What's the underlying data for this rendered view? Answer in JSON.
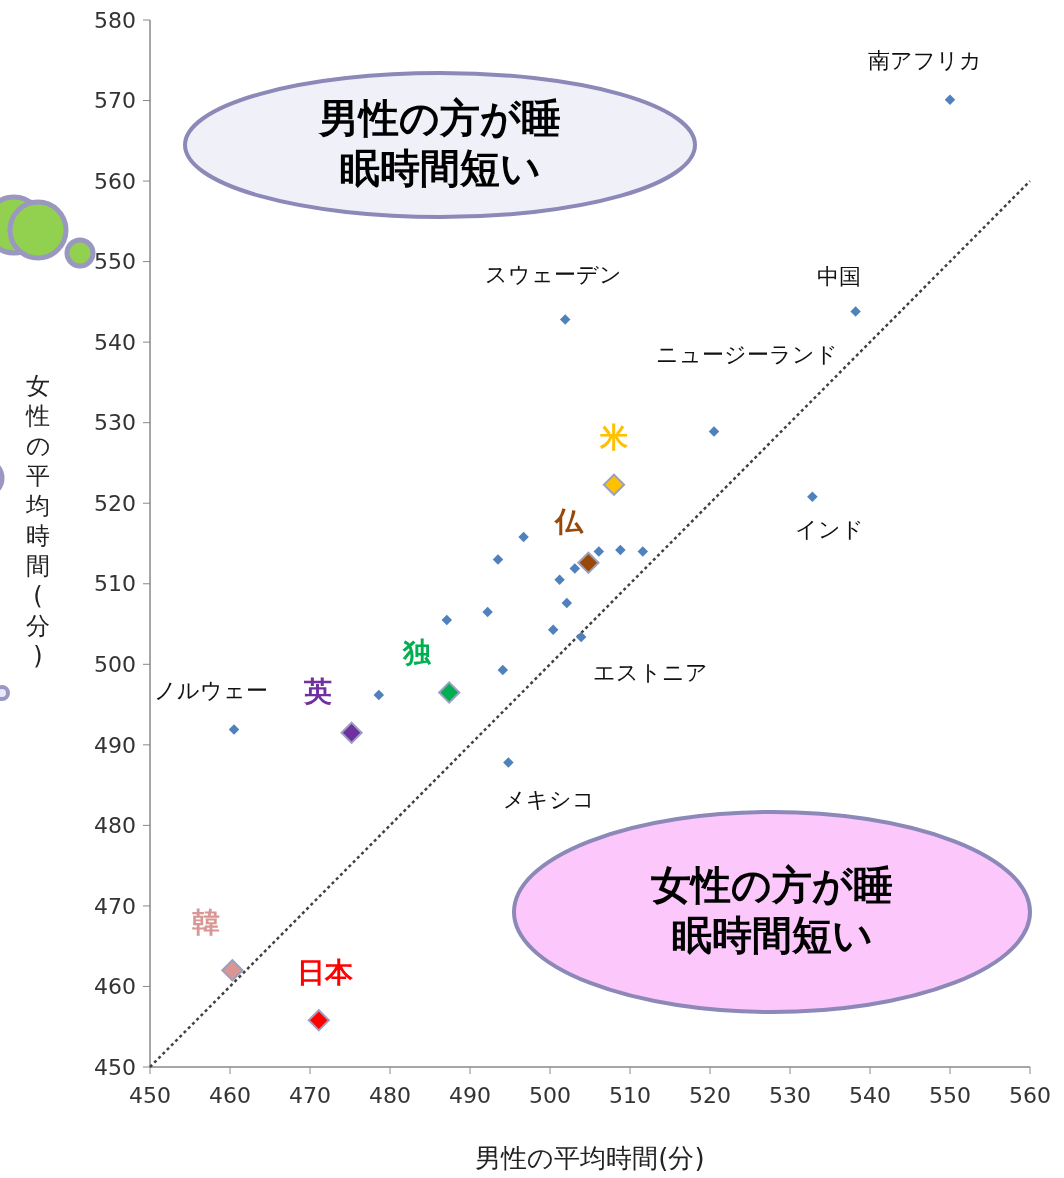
{
  "chart_data": {
    "type": "scatter",
    "xlabel": "男性の平均時間(分)",
    "ylabel": "女性の平均時間(分)",
    "xlim": [
      450,
      560
    ],
    "ylim": [
      450,
      580
    ],
    "xticks": [
      450,
      460,
      470,
      480,
      490,
      500,
      510,
      520,
      530,
      540,
      550,
      560
    ],
    "yticks": [
      450,
      460,
      470,
      480,
      490,
      500,
      510,
      520,
      530,
      540,
      550,
      560,
      570,
      580
    ],
    "grid": false,
    "marker": "diamond",
    "series": [
      {
        "type": "line",
        "color": "#404040",
        "line_style": "dotted",
        "marker": "none",
        "x": [
          450,
          560
        ],
        "values": [
          450,
          560
        ]
      },
      {
        "color": "#4f81bd",
        "x": [
          550,
          501.9,
          538.2,
          520.5,
          532.8,
          460.5,
          494.8,
          503.9,
          496.7,
          493.5,
          501.2,
          503.1,
          506.1,
          508.8,
          511.6,
          502.1,
          492.2,
          487.1,
          500.4,
          494.1,
          478.6
        ],
        "values": [
          570.1,
          542.8,
          543.8,
          528.9,
          520.8,
          491.9,
          487.8,
          503.4,
          515.8,
          513,
          510.5,
          511.9,
          514,
          514.2,
          514,
          507.6,
          506.5,
          505.5,
          504.3,
          499.3,
          496.2
        ]
      },
      {
        "name": "米",
        "color": "#ffc000",
        "x": [
          508
        ],
        "values": [
          522.3
        ]
      },
      {
        "name": "仏",
        "color": "#984807",
        "x": [
          504.8
        ],
        "values": [
          512.6
        ]
      },
      {
        "name": "独",
        "color": "#00b050",
        "x": [
          487.4
        ],
        "values": [
          496.5
        ]
      },
      {
        "name": "英",
        "color": "#7030a0",
        "x": [
          475.2
        ],
        "values": [
          491.5
        ]
      },
      {
        "name": "韓",
        "color": "#d99694",
        "x": [
          460.3
        ],
        "values": [
          462
        ]
      },
      {
        "name": "日本",
        "color": "#ff0000",
        "x": [
          471.1
        ],
        "values": [
          455.8
        ]
      }
    ],
    "annotations": [
      "男性の方が睡眠時間短い",
      "女性の方が睡眠時間短い",
      {
        "text": "南アフリカ",
        "x": 550,
        "y": 570.1
      },
      {
        "text": "スウェーデン",
        "x": 501.9,
        "y": 542.8
      },
      {
        "text": "中国",
        "x": 538.2,
        "y": 543.8
      },
      {
        "text": "ニュージーランド",
        "x": 520.5,
        "y": 528.9
      },
      {
        "text": "インド",
        "x": 532.8,
        "y": 520.8
      },
      {
        "text": "ノルウェー",
        "x": 460.5,
        "y": 491.9
      },
      {
        "text": "メキシコ",
        "x": 494.8,
        "y": 487.8
      },
      {
        "text": "エストニア",
        "x": 503.9,
        "y": 503.4
      }
    ]
  }
}
